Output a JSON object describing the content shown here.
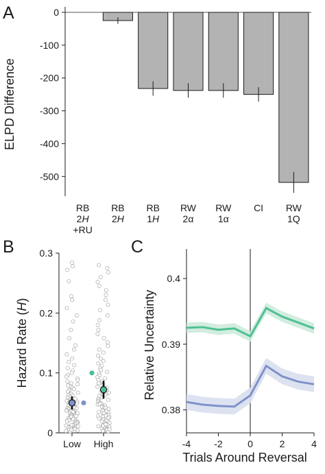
{
  "colors": {
    "bar": "#b3b3b3",
    "bar_edge": "#1a1a1a",
    "axis": "#1a1a1a",
    "dots": "#c8c8c8",
    "dots_edge": "#9a9a9a",
    "green": "#4fbf93",
    "green_band": "#cdebdc",
    "blue": "#7f91c9",
    "blue_band": "#d9dff0"
  },
  "chart_data": [
    {
      "panel": "A",
      "type": "bar",
      "ylabel": "ELPD Difference",
      "ylim": [
        -560,
        0
      ],
      "yticks": [
        0,
        -100,
        -200,
        -300,
        -400,
        -500
      ],
      "ytick_labels": [
        "0",
        "-100",
        "-200",
        "-300",
        "-400",
        "-500"
      ],
      "categories": [
        [
          "RB",
          "2H",
          "+RU"
        ],
        [
          "RB",
          "2H"
        ],
        [
          "RB",
          "1H"
        ],
        [
          "RW",
          "2α"
        ],
        [
          "RW",
          "1α"
        ],
        [
          "CI"
        ],
        [
          "RW",
          "1Q"
        ]
      ],
      "values": [
        0,
        -25,
        -232,
        -238,
        -238,
        -250,
        -518
      ],
      "errors": [
        0,
        10,
        22,
        22,
        22,
        22,
        32
      ],
      "grid": false
    },
    {
      "panel": "B",
      "type": "scatter",
      "ylabel_prefix": "Hazard Rate (",
      "ylabel_var": "H",
      "ylabel_suffix": ")",
      "ylim": [
        0,
        0.3
      ],
      "yticks": [
        0,
        0.1,
        0.2,
        0.3
      ],
      "ytick_labels": [
        "0",
        "0.1",
        "0.2",
        "0.3"
      ],
      "categories": [
        "Low",
        "High"
      ],
      "group_means": [
        0.05,
        0.072
      ],
      "group_errors": [
        0.011,
        0.015
      ],
      "reference_values": [
        0.05,
        0.1
      ],
      "points": [
        [
          0.284,
          0.278,
          0.272,
          0.253,
          0.228,
          0.222,
          0.208,
          0.196,
          0.186,
          0.172,
          0.158,
          0.146,
          0.139,
          0.131,
          0.124,
          0.118,
          0.113,
          0.108,
          0.104,
          0.1,
          0.097,
          0.094,
          0.091,
          0.088,
          0.086,
          0.083,
          0.081,
          0.079,
          0.077,
          0.075,
          0.073,
          0.071,
          0.069,
          0.067,
          0.065,
          0.063,
          0.062,
          0.06,
          0.059,
          0.057,
          0.056,
          0.054,
          0.053,
          0.052,
          0.05,
          0.049,
          0.048,
          0.046,
          0.045,
          0.044,
          0.043,
          0.042,
          0.041,
          0.04,
          0.039,
          0.038,
          0.037,
          0.036,
          0.035,
          0.034,
          0.033,
          0.032,
          0.031,
          0.03,
          0.029,
          0.028,
          0.027,
          0.026,
          0.025,
          0.024,
          0.023,
          0.022,
          0.021,
          0.02,
          0.019,
          0.018,
          0.017,
          0.016,
          0.015,
          0.014,
          0.013,
          0.012,
          0.011,
          0.01,
          0.009,
          0.008,
          0.007,
          0.006,
          0.005,
          0.004,
          0.003,
          0.002,
          0.035,
          0.027,
          0.019,
          0.011,
          0.005,
          0.041,
          0.023,
          0.013
        ],
        [
          0.28,
          0.275,
          0.268,
          0.26,
          0.252,
          0.245,
          0.238,
          0.23,
          0.222,
          0.214,
          0.205,
          0.196,
          0.188,
          0.18,
          0.172,
          0.165,
          0.158,
          0.151,
          0.145,
          0.139,
          0.134,
          0.129,
          0.124,
          0.12,
          0.116,
          0.112,
          0.108,
          0.105,
          0.102,
          0.099,
          0.096,
          0.093,
          0.091,
          0.088,
          0.086,
          0.083,
          0.081,
          0.079,
          0.077,
          0.075,
          0.073,
          0.071,
          0.069,
          0.067,
          0.065,
          0.063,
          0.061,
          0.059,
          0.057,
          0.055,
          0.054,
          0.052,
          0.05,
          0.049,
          0.047,
          0.046,
          0.044,
          0.043,
          0.041,
          0.04,
          0.038,
          0.037,
          0.035,
          0.034,
          0.033,
          0.031,
          0.03,
          0.029,
          0.027,
          0.026,
          0.025,
          0.023,
          0.022,
          0.021,
          0.02,
          0.018,
          0.017,
          0.016,
          0.015,
          0.013,
          0.012,
          0.011,
          0.01,
          0.009,
          0.008,
          0.007,
          0.006,
          0.005,
          0.004,
          0.003,
          0.002,
          0.036,
          0.028,
          0.019,
          0.012,
          0.006,
          0.042,
          0.024,
          0.014,
          0.062,
          0.048,
          0.033
        ]
      ]
    },
    {
      "panel": "C",
      "type": "line",
      "xlabel": "Trials Around Reversal",
      "ylabel": "Relative Uncertainty",
      "xlim": [
        -4,
        4
      ],
      "ylim": [
        0.3765,
        0.4045
      ],
      "xticks": [
        -4,
        -2,
        0,
        2,
        4
      ],
      "xtick_labels": [
        "-4",
        "-2",
        "0",
        "2",
        "4"
      ],
      "yticks": [
        0.38,
        0.39,
        0.4
      ],
      "ytick_labels": [
        "0.38",
        "0.39",
        "0.4"
      ],
      "x": [
        -4,
        -3,
        -2,
        -1,
        0,
        1,
        2,
        3,
        4
      ],
      "vline_x": 0,
      "series": [
        {
          "color_key": "green",
          "values": [
            0.3925,
            0.3926,
            0.3922,
            0.3924,
            0.3912,
            0.3955,
            0.3942,
            0.3933,
            0.3924
          ],
          "error": 0.0008
        },
        {
          "color_key": "blue",
          "values": [
            0.3812,
            0.3808,
            0.3806,
            0.3805,
            0.3822,
            0.3867,
            0.3851,
            0.3843,
            0.3839
          ],
          "error": 0.0012
        }
      ]
    }
  ],
  "panel_labels": [
    "A",
    "B",
    "C"
  ]
}
